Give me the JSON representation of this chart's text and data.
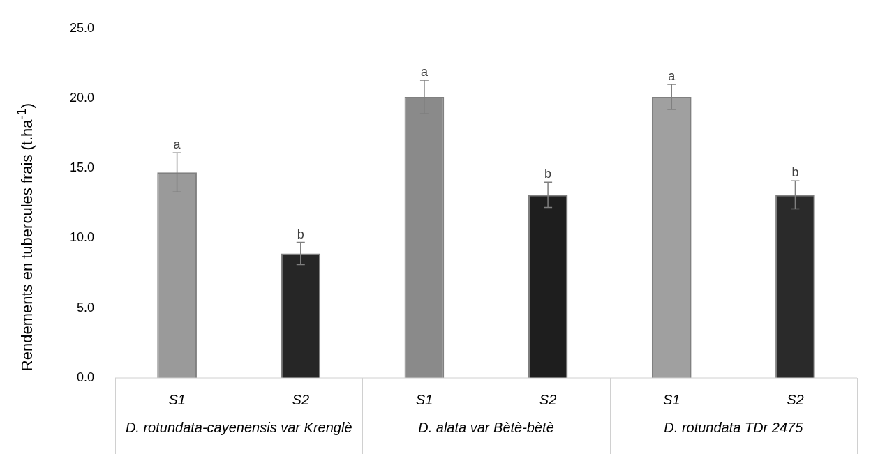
{
  "chart_data": {
    "type": "bar",
    "ylabel": "Rendements en tubercules frais (t.ha$^{-1}$)",
    "categories": [
      "S1",
      "S2",
      "S1",
      "S2",
      "S1",
      "S2"
    ],
    "values": [
      14.7,
      8.9,
      20.1,
      13.1,
      20.1,
      13.1
    ],
    "colors": [
      "#9a9a9a",
      "#262626",
      "#8a8a8a",
      "#1e1e1e",
      "#a0a0a0",
      "#2a2a2a"
    ],
    "errors": [
      1.4,
      0.8,
      1.2,
      0.9,
      0.9,
      1.0
    ],
    "value_labels": [
      "a",
      "b",
      "a",
      "b",
      "a",
      "b"
    ],
    "annotations": [
      "D. rotundata-cayenensis var Krenglè",
      "D. alata var Bètè-bètè",
      "D. rotundata TDr 2475"
    ],
    "ylim": [
      0,
      25
    ],
    "yticks": [
      {
        "value": 0,
        "label": "0.0"
      },
      {
        "value": 5,
        "label": "5.0"
      },
      {
        "value": 10,
        "label": "10.0"
      },
      {
        "value": 15,
        "label": "15.0"
      },
      {
        "value": 20,
        "label": "20.0"
      },
      {
        "value": 25,
        "label": "25.0"
      }
    ],
    "grid": false,
    "legend": false
  }
}
